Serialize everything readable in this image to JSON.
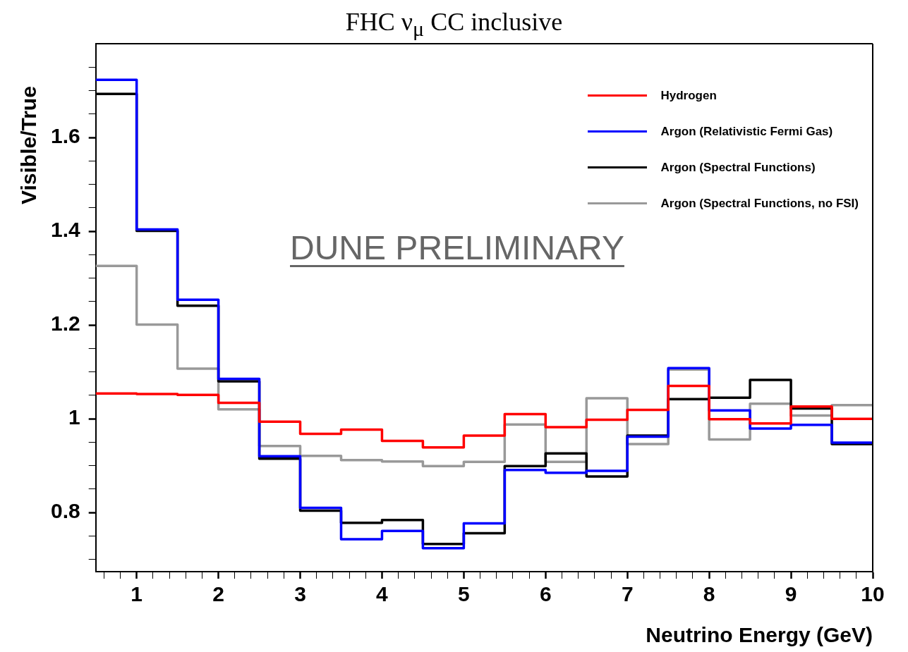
{
  "chart_data": {
    "type": "histogram",
    "title": "FHC ν$_{μ}$ CC inclusive",
    "xlabel": "Neutrino Energy (GeV)",
    "ylabel": "Visible/True",
    "bins": [
      0.5,
      1,
      1.5,
      2,
      2.5,
      3,
      3.5,
      4,
      4.5,
      5,
      5.5,
      6,
      6.5,
      7,
      7.5,
      8,
      8.5,
      9,
      9.5,
      10
    ],
    "series": [
      {
        "name": "Hydrogen",
        "color": "#ff0000",
        "values": [
          1.054,
          1.053,
          1.051,
          1.034,
          0.994,
          0.968,
          0.977,
          0.953,
          0.939,
          0.964,
          1.01,
          0.982,
          0.998,
          1.019,
          1.07,
          0.999,
          0.99,
          1.026,
          1.0
        ]
      },
      {
        "name": "Argon (Relativistic Fermi Gas)",
        "color": "#0000ff",
        "values": [
          1.723,
          1.404,
          1.254,
          1.085,
          0.92,
          0.81,
          0.743,
          0.761,
          0.724,
          0.777,
          0.891,
          0.885,
          0.889,
          0.962,
          1.108,
          1.018,
          0.979,
          0.987,
          0.949
        ]
      },
      {
        "name": "Argon (Spectral Functions)",
        "color": "#000000",
        "values": [
          1.693,
          1.401,
          1.241,
          1.08,
          0.915,
          0.804,
          0.778,
          0.784,
          0.733,
          0.756,
          0.899,
          0.926,
          0.877,
          0.964,
          1.042,
          1.045,
          1.083,
          1.022,
          0.946
        ]
      },
      {
        "name": "Argon (Spectral Functions, no FSI)",
        "color": "#999999",
        "values": [
          1.326,
          1.201,
          1.107,
          1.02,
          0.942,
          0.921,
          0.912,
          0.909,
          0.899,
          0.908,
          0.988,
          0.908,
          1.044,
          0.946,
          1.105,
          0.956,
          1.032,
          1.007,
          1.029
        ]
      }
    ],
    "xlim": [
      0.5,
      10
    ],
    "xticks": [
      {
        "value": 0.6,
        "label": null
      },
      {
        "value": 0.8,
        "label": null
      },
      1,
      {
        "value": 1.2,
        "label": null
      },
      {
        "value": 1.4,
        "label": null
      },
      {
        "value": 1.6,
        "label": null
      },
      {
        "value": 1.8,
        "label": null
      },
      2,
      {
        "value": 2.2,
        "label": null
      },
      {
        "value": 2.4,
        "label": null
      },
      {
        "value": 2.6,
        "label": null
      },
      {
        "value": 2.8,
        "label": null
      },
      3,
      {
        "value": 3.2,
        "label": null
      },
      {
        "value": 3.4,
        "label": null
      },
      {
        "value": 3.6,
        "label": null
      },
      {
        "value": 3.8,
        "label": null
      },
      4,
      {
        "value": 4.2,
        "label": null
      },
      {
        "value": 4.4,
        "label": null
      },
      {
        "value": 4.6,
        "label": null
      },
      {
        "value": 4.8,
        "label": null
      },
      5,
      {
        "value": 5.2,
        "label": null
      },
      {
        "value": 5.4,
        "label": null
      },
      {
        "value": 5.6,
        "label": null
      },
      {
        "value": 5.8,
        "label": null
      },
      6,
      {
        "value": 6.2,
        "label": null
      },
      {
        "value": 6.4,
        "label": null
      },
      {
        "value": 6.6,
        "label": null
      },
      {
        "value": 6.8,
        "label": null
      },
      7,
      {
        "value": 7.2,
        "label": null
      },
      {
        "value": 7.4,
        "label": null
      },
      {
        "value": 7.6,
        "label": null
      },
      {
        "value": 7.8,
        "label": null
      },
      8,
      {
        "value": 8.2,
        "label": null
      },
      {
        "value": 8.4,
        "label": null
      },
      {
        "value": 8.6,
        "label": null
      },
      {
        "value": 8.8,
        "label": null
      },
      9,
      {
        "value": 9.2,
        "label": null
      },
      {
        "value": 9.4,
        "label": null
      },
      {
        "value": 9.6,
        "label": null
      },
      {
        "value": 9.8,
        "label": null
      },
      10
    ],
    "ylim": [
      0.674,
      1.8
    ],
    "yticks": [
      {
        "value": 0.7,
        "label": null
      },
      {
        "value": 0.75,
        "label": null
      },
      0.8,
      {
        "value": 0.85,
        "label": null
      },
      {
        "value": 0.9,
        "label": null
      },
      {
        "value": 0.95,
        "label": null
      },
      1,
      {
        "value": 1.05,
        "label": null
      },
      {
        "value": 1.1,
        "label": null
      },
      {
        "value": 1.15,
        "label": null
      },
      1.2,
      {
        "value": 1.25,
        "label": null
      },
      {
        "value": 1.3,
        "label": null
      },
      {
        "value": 1.35,
        "label": null
      },
      1.4,
      {
        "value": 1.45,
        "label": null
      },
      {
        "value": 1.5,
        "label": null
      },
      {
        "value": 1.55,
        "label": null
      },
      1.6,
      {
        "value": 1.65,
        "label": null
      },
      {
        "value": 1.7,
        "label": null
      },
      {
        "value": 1.75,
        "label": null
      }
    ],
    "grid": false,
    "legend": "top right",
    "line_style": "solid",
    "marker": "none",
    "annotations": [
      "DUNE PRELIMINARY"
    ]
  }
}
